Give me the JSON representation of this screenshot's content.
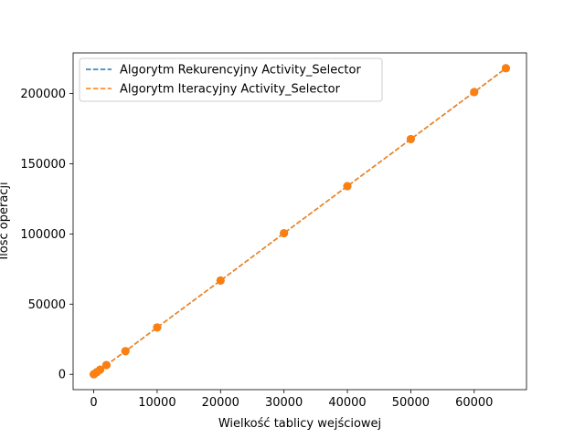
{
  "chart_data": {
    "type": "line",
    "xlabel": "Wielkość tablicy wejściowej",
    "ylabel": "Ilość operacji",
    "xlim": [
      -3250,
      68250
    ],
    "ylim": [
      -10900,
      228900
    ],
    "xticks": [
      0,
      10000,
      20000,
      30000,
      40000,
      50000,
      60000
    ],
    "xtick_labels": [
      "0",
      "10000",
      "20000",
      "30000",
      "40000",
      "50000",
      "60000"
    ],
    "yticks": [
      0,
      50000,
      100000,
      150000,
      200000
    ],
    "ytick_labels": [
      "0",
      "50000",
      "100000",
      "150000",
      "200000"
    ],
    "grid": false,
    "legend_position": "top-left",
    "series": [
      {
        "name": "Algorytm Rekurencyjny Activity_Selector",
        "color": "#1f77b4",
        "style": "dashed",
        "marker": "circle",
        "x": [
          10,
          100,
          500,
          1000,
          2000,
          5000,
          10000,
          20000,
          30000,
          40000,
          50000,
          60000,
          65000
        ],
        "y": [
          30,
          330,
          1650,
          3300,
          6600,
          16500,
          33400,
          66800,
          100500,
          134000,
          167500,
          201000,
          218000
        ]
      },
      {
        "name": "Algorytm Iteracyjny Activity_Selector",
        "color": "#ff7f0e",
        "style": "dashed",
        "marker": "circle",
        "x": [
          10,
          100,
          500,
          1000,
          2000,
          5000,
          10000,
          20000,
          30000,
          40000,
          50000,
          60000,
          65000
        ],
        "y": [
          30,
          330,
          1650,
          3300,
          6600,
          16500,
          33400,
          66800,
          100500,
          134000,
          167500,
          201000,
          218000
        ]
      }
    ]
  }
}
